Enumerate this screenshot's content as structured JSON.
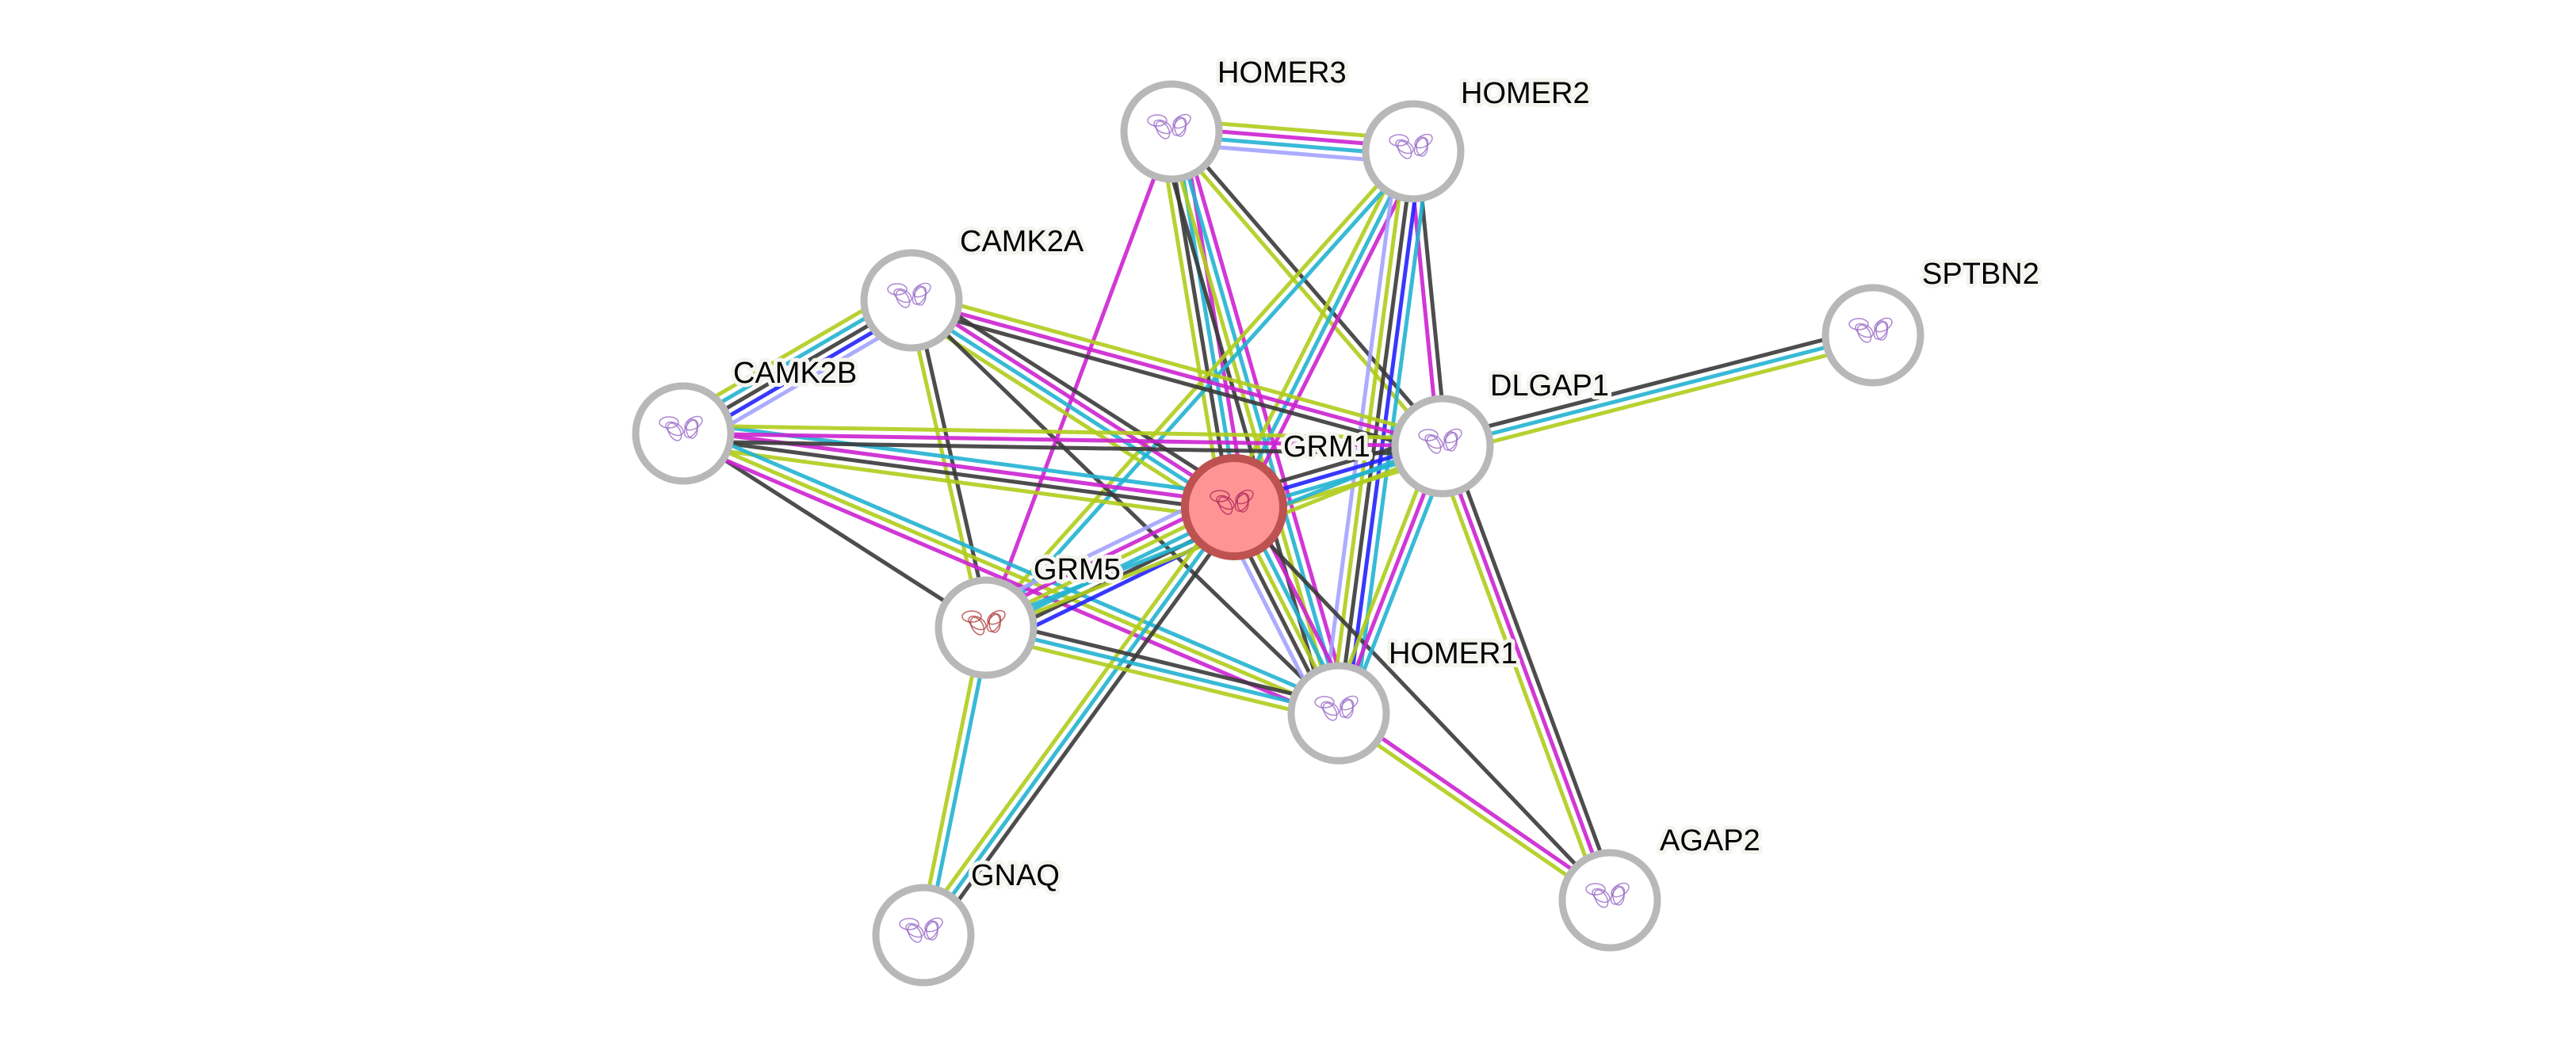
{
  "evidence_colors": {
    "database": "#22b3d2",
    "experimental": "#cc22d0",
    "coexpression": "#3a3a3a",
    "textmining": "#b0cc1c",
    "cooccurrence": "#2222ff",
    "homology": "#a3a3ff"
  },
  "query_node_color": "#ff9494",
  "query_node_border": "#bd5250",
  "nodes": [
    {
      "id": "HOMER3",
      "label": "HOMER3",
      "query": false
    },
    {
      "id": "HOMER2",
      "label": "HOMER2",
      "query": false
    },
    {
      "id": "CAMK2A",
      "label": "CAMK2A",
      "query": false
    },
    {
      "id": "CAMK2B",
      "label": "CAMK2B",
      "query": false
    },
    {
      "id": "GRM1",
      "label": "GRM1",
      "query": true
    },
    {
      "id": "DLGAP1",
      "label": "DLGAP1",
      "query": false
    },
    {
      "id": "SPTBN2",
      "label": "SPTBN2",
      "query": false
    },
    {
      "id": "GRM5",
      "label": "GRM5",
      "query": false
    },
    {
      "id": "HOMER1",
      "label": "HOMER1",
      "query": false
    },
    {
      "id": "GNAQ",
      "label": "GNAQ",
      "query": false
    },
    {
      "id": "AGAP2",
      "label": "AGAP2",
      "query": false
    }
  ],
  "edges": [
    {
      "a": "HOMER3",
      "b": "HOMER2",
      "evidence": [
        "textmining",
        "experimental",
        "database",
        "homology"
      ]
    },
    {
      "a": "HOMER3",
      "b": "GRM1",
      "evidence": [
        "experimental",
        "database",
        "coexpression",
        "textmining"
      ]
    },
    {
      "a": "HOMER3",
      "b": "DLGAP1",
      "evidence": [
        "coexpression",
        "textmining"
      ]
    },
    {
      "a": "HOMER3",
      "b": "GRM5",
      "evidence": [
        "experimental"
      ]
    },
    {
      "a": "HOMER3",
      "b": "HOMER1",
      "evidence": [
        "experimental",
        "database",
        "textmining",
        "coexpression"
      ]
    },
    {
      "a": "HOMER2",
      "b": "GRM1",
      "evidence": [
        "experimental",
        "database",
        "textmining"
      ]
    },
    {
      "a": "HOMER2",
      "b": "DLGAP1",
      "evidence": [
        "coexpression",
        "experimental"
      ]
    },
    {
      "a": "HOMER2",
      "b": "HOMER1",
      "evidence": [
        "database",
        "cooccurrence",
        "coexpression",
        "textmining",
        "homology"
      ]
    },
    {
      "a": "HOMER2",
      "b": "GRM5",
      "evidence": [
        "database",
        "textmining"
      ]
    },
    {
      "a": "CAMK2A",
      "b": "CAMK2B",
      "evidence": [
        "homology",
        "cooccurrence",
        "coexpression",
        "database",
        "textmining"
      ]
    },
    {
      "a": "CAMK2A",
      "b": "DLGAP1",
      "evidence": [
        "textmining",
        "experimental",
        "coexpression"
      ]
    },
    {
      "a": "CAMK2A",
      "b": "GRM1",
      "evidence": [
        "coexpression",
        "experimental",
        "database",
        "textmining"
      ]
    },
    {
      "a": "CAMK2A",
      "b": "GRM5",
      "evidence": [
        "coexpression",
        "textmining"
      ]
    },
    {
      "a": "CAMK2A",
      "b": "HOMER1",
      "evidence": [
        "coexpression"
      ]
    },
    {
      "a": "CAMK2B",
      "b": "GRM1",
      "evidence": [
        "database",
        "experimental",
        "coexpression",
        "textmining"
      ]
    },
    {
      "a": "CAMK2B",
      "b": "DLGAP1",
      "evidence": [
        "textmining",
        "experimental",
        "coexpression"
      ]
    },
    {
      "a": "CAMK2B",
      "b": "GRM5",
      "evidence": [
        "coexpression"
      ]
    },
    {
      "a": "CAMK2B",
      "b": "HOMER1",
      "evidence": [
        "database",
        "textmining",
        "experimental"
      ]
    },
    {
      "a": "GRM1",
      "b": "DLGAP1",
      "evidence": [
        "coexpression",
        "cooccurrence",
        "database",
        "textmining"
      ]
    },
    {
      "a": "GRM1",
      "b": "GRM5",
      "evidence": [
        "cooccurrence",
        "coexpression",
        "database",
        "textmining",
        "experimental",
        "homology"
      ]
    },
    {
      "a": "GRM1",
      "b": "HOMER1",
      "evidence": [
        "experimental",
        "database",
        "textmining",
        "coexpression",
        "homology"
      ]
    },
    {
      "a": "GRM1",
      "b": "GNAQ",
      "evidence": [
        "coexpression",
        "database",
        "textmining"
      ]
    },
    {
      "a": "GRM1",
      "b": "AGAP2",
      "evidence": [
        "coexpression"
      ]
    },
    {
      "a": "DLGAP1",
      "b": "SPTBN2",
      "evidence": [
        "coexpression",
        "database",
        "textmining"
      ]
    },
    {
      "a": "DLGAP1",
      "b": "HOMER1",
      "evidence": [
        "database",
        "experimental",
        "textmining"
      ]
    },
    {
      "a": "DLGAP1",
      "b": "AGAP2",
      "evidence": [
        "coexpression",
        "experimental",
        "textmining"
      ]
    },
    {
      "a": "DLGAP1",
      "b": "GRM5",
      "evidence": [
        "textmining",
        "database"
      ]
    },
    {
      "a": "GRM5",
      "b": "HOMER1",
      "evidence": [
        "coexpression",
        "database",
        "textmining"
      ]
    },
    {
      "a": "GRM5",
      "b": "GNAQ",
      "evidence": [
        "database",
        "textmining"
      ]
    },
    {
      "a": "HOMER1",
      "b": "AGAP2",
      "evidence": [
        "experimental",
        "textmining"
      ]
    }
  ]
}
